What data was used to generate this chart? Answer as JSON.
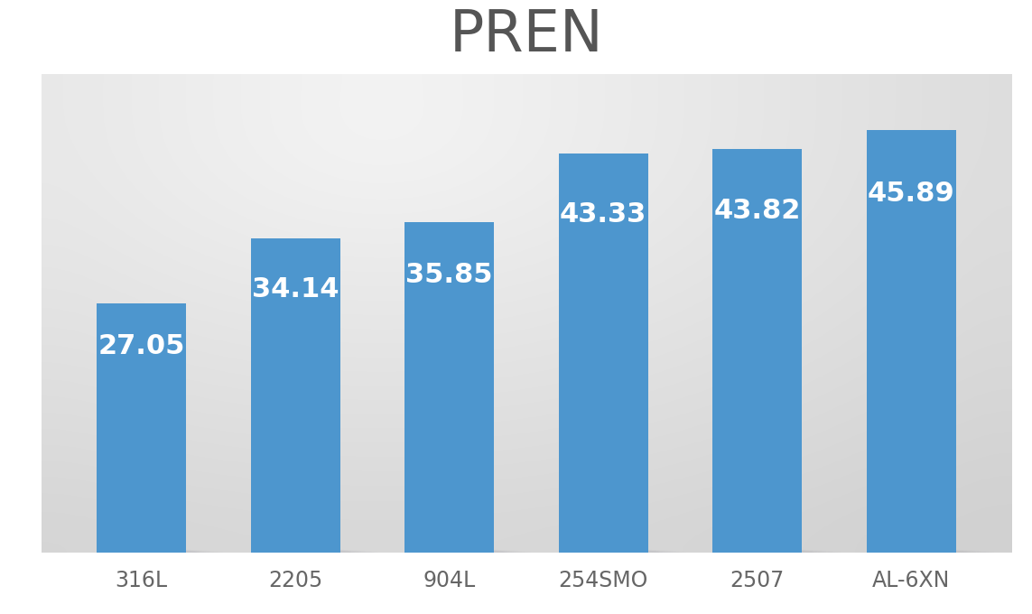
{
  "title": "PREN",
  "title_fontsize": 46,
  "title_color": "#555555",
  "categories": [
    "316L",
    "2205",
    "904L",
    "254SMO",
    "2507",
    "AL-6XN"
  ],
  "values": [
    27.05,
    34.14,
    35.85,
    43.33,
    43.82,
    45.89
  ],
  "bar_color": "#4d96ce",
  "label_color": "#ffffff",
  "label_fontsize": 22,
  "xlabel_fontsize": 17,
  "xlabel_color": "#666666",
  "ylim": [
    0,
    52
  ],
  "bar_width": 0.58,
  "bg_light": 0.96,
  "bg_dark": 0.82,
  "shadow_color": [
    0.72,
    0.72,
    0.74
  ],
  "shadow_alpha": 0.55
}
